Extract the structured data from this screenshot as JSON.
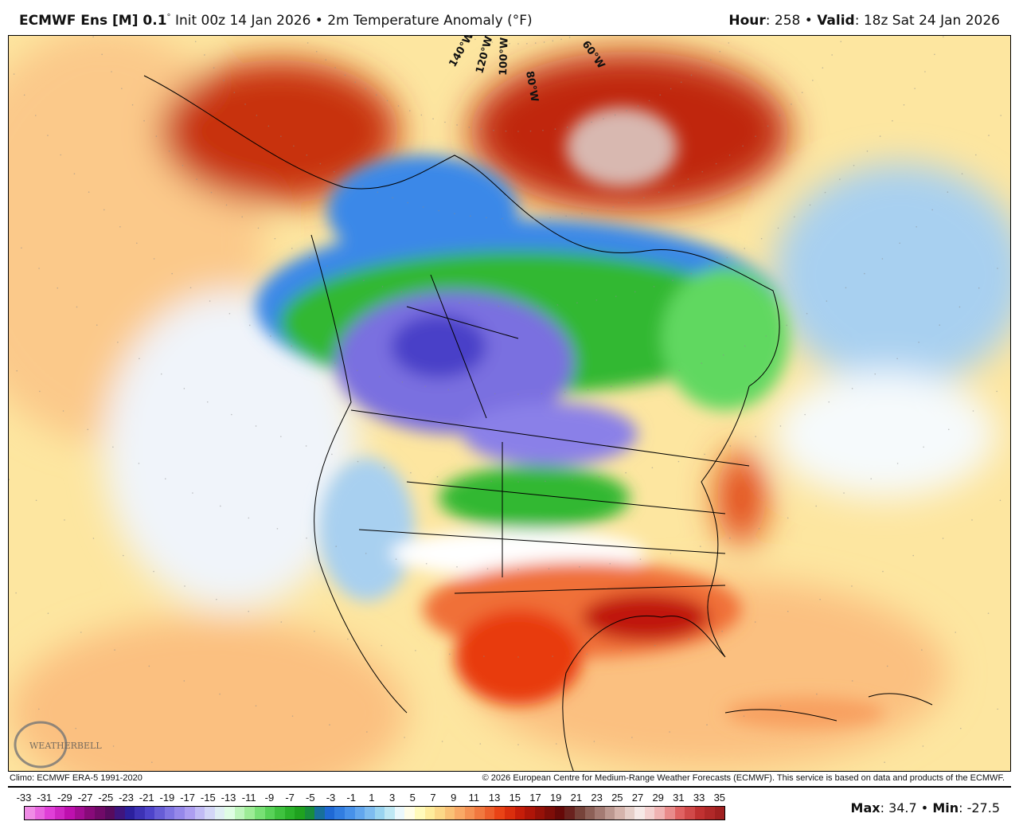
{
  "header": {
    "model": "ECMWF Ens [M] 0.1",
    "degree": "°",
    "init": "Init 00z 14 Jan 2026",
    "bullet": "•",
    "field": "2m Temperature Anomaly (°F)",
    "hour_label": "Hour",
    "hour_value": ": 258",
    "valid_label": "Valid",
    "valid_value": ": 18z Sat 24 Jan 2026"
  },
  "map": {
    "region": "North America",
    "longitude_labels": [
      "140°W",
      "120°W",
      "100°W",
      "80°W",
      "60°W"
    ],
    "logo_text": "WEATHERBELL"
  },
  "footer": {
    "climo": "Climo: ECMWF ERA-5 1991-2020",
    "copyright": "© 2026 European Centre for Medium-Range Weather Forecasts (ECMWF). This service is based on data and products of the ECMWF.",
    "max_label": "Max",
    "max_value": ": 34.7",
    "min_label": "Min",
    "min_value": ": -27.5",
    "bullet": "•"
  },
  "legend": {
    "ticks": [
      "-33",
      "-31",
      "-29",
      "-27",
      "-25",
      "-23",
      "-21",
      "-19",
      "-17",
      "-15",
      "-13",
      "-11",
      "-9",
      "-7",
      "-5",
      "-3",
      "-1",
      "1",
      "3",
      "5",
      "7",
      "9",
      "11",
      "13",
      "15",
      "17",
      "19",
      "21",
      "23",
      "25",
      "27",
      "29",
      "31",
      "33",
      "35"
    ],
    "color_stops": [
      "#f08ce6",
      "#e040d8",
      "#c010b0",
      "#8a0a7a",
      "#5a0a5a",
      "#2a1e9a",
      "#4a40c8",
      "#7a70e0",
      "#a898f0",
      "#d0d0f8",
      "#e8fff0",
      "#a8f0a0",
      "#60d860",
      "#30b830",
      "#189818",
      "#1860d0",
      "#3a88e8",
      "#70b0f0",
      "#a8e0f0",
      "#ffffff",
      "#fff8a8",
      "#fbd080",
      "#f8a060",
      "#f07038",
      "#e83a10",
      "#c01808",
      "#901008",
      "#600808",
      "#7a4a40",
      "#a88078",
      "#d8b8b0",
      "#f8ecea",
      "#f0b0b0",
      "#e06060",
      "#c03030",
      "#a02020"
    ]
  }
}
